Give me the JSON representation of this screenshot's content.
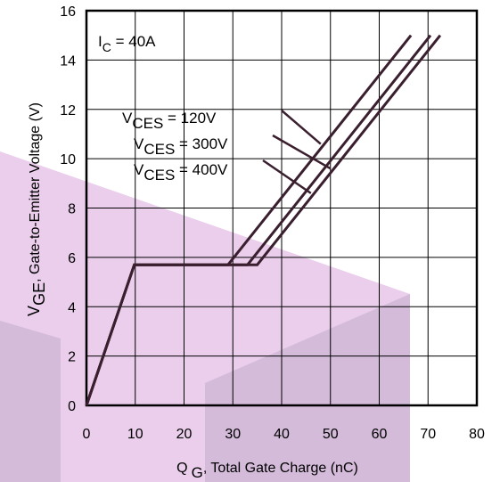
{
  "chart_data": {
    "type": "line",
    "xlabel": {
      "main": "Q",
      "sub": "G",
      "rest": ", Total Gate Charge (nC)"
    },
    "ylabel": {
      "main": "V",
      "sub": "GE",
      "rest": ", Gate-to-Emitter Voltage (V)"
    },
    "xlim": [
      0,
      80
    ],
    "ylim": [
      0,
      16
    ],
    "xticks": [
      "0",
      "10",
      "20",
      "30",
      "40",
      "50",
      "60",
      "70",
      "80"
    ],
    "yticks": [
      "0",
      "2",
      "4",
      "6",
      "8",
      "10",
      "12",
      "14",
      "16"
    ],
    "grid": true,
    "annotation": {
      "main": "I",
      "sub": "C",
      "rest": " = 40A"
    },
    "series": [
      {
        "name": {
          "main": "V",
          "sub": "CES",
          "rest": " = 120V"
        },
        "points": [
          [
            0,
            0
          ],
          [
            9.8,
            5.7
          ],
          [
            29,
            5.7
          ],
          [
            66.5,
            15
          ]
        ],
        "label_anchor": [
          48,
          10.6
        ]
      },
      {
        "name": {
          "main": "V",
          "sub": "CES",
          "rest": " = 300V"
        },
        "points": [
          [
            0,
            0
          ],
          [
            9.8,
            5.7
          ],
          [
            33,
            5.7
          ],
          [
            70.5,
            15
          ]
        ],
        "label_anchor": [
          50,
          9.6
        ]
      },
      {
        "name": {
          "main": "V",
          "sub": "CES",
          "rest": " = 400V"
        },
        "points": [
          [
            0,
            0
          ],
          [
            9.8,
            5.7
          ],
          [
            35,
            5.7
          ],
          [
            72.5,
            15
          ]
        ],
        "label_anchor": [
          46,
          8.6
        ]
      }
    ],
    "line_color": "#3a1f2e",
    "watermark_color": "#d9a6dc"
  }
}
